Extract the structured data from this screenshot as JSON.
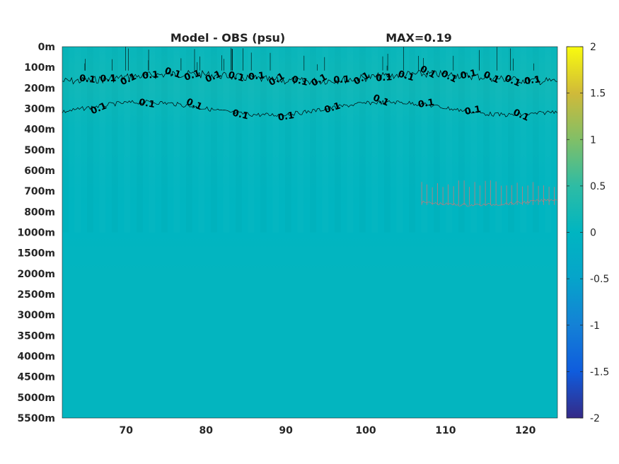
{
  "chart_data": {
    "type": "heatmap",
    "title": "Model - OBS (psu)",
    "annotation": "MAX=0.19",
    "xlabel": "",
    "ylabel": "",
    "xlim": [
      62,
      124
    ],
    "x_ticks": [
      70,
      80,
      90,
      100,
      110,
      120
    ],
    "y_tick_labels": [
      "0m",
      "100m",
      "200m",
      "300m",
      "400m",
      "500m",
      "600m",
      "700m",
      "800m",
      "1000m",
      "1500m",
      "2000m",
      "2500m",
      "3000m",
      "3500m",
      "4000m",
      "4500m",
      "5000m",
      "5500m"
    ],
    "y_order": "depth increasing downward",
    "colormap": "parula",
    "clim": [
      -2,
      2
    ],
    "colorbar_ticks": [
      "2",
      "1.5",
      "1",
      "0.5",
      "0",
      "-0.5",
      "-1",
      "-1.5",
      "-2"
    ],
    "depth_profile": [
      {
        "depth": "0m",
        "value": 0.1
      },
      {
        "depth": "100m",
        "value": 0.13
      },
      {
        "depth": "200m",
        "value": 0.16
      },
      {
        "depth": "300m",
        "value": 0.11
      },
      {
        "depth": "400m",
        "value": 0.07
      },
      {
        "depth": "500m",
        "value": 0.05
      },
      {
        "depth": "600m",
        "value": 0.03
      },
      {
        "depth": "700m",
        "value": 0.01
      },
      {
        "depth": "800m",
        "value": -0.01
      },
      {
        "depth": "1000m",
        "value": 0.0
      },
      {
        "depth": "1500m",
        "value": 0.02
      },
      {
        "depth": "2000m",
        "value": 0.03
      },
      {
        "depth": "2500m",
        "value": 0.03
      },
      {
        "depth": "3000m",
        "value": 0.03
      },
      {
        "depth": "3500m",
        "value": 0.03
      },
      {
        "depth": "4000m",
        "value": 0.03
      },
      {
        "depth": "4500m",
        "value": 0.03
      },
      {
        "depth": "5000m",
        "value": 0.03
      },
      {
        "depth": "5500m",
        "value": 0.03
      }
    ],
    "contours": [
      {
        "level": "0.1",
        "color": "#000000",
        "near_depth": "150m",
        "labels": 22
      },
      {
        "level": "0.1",
        "color": "#000000",
        "near_depth": "300m",
        "labels": 10
      },
      {
        "level": "0",
        "color": "#c87a7a",
        "near_depth": "750m",
        "x_range": [
          107,
          124
        ]
      }
    ]
  }
}
